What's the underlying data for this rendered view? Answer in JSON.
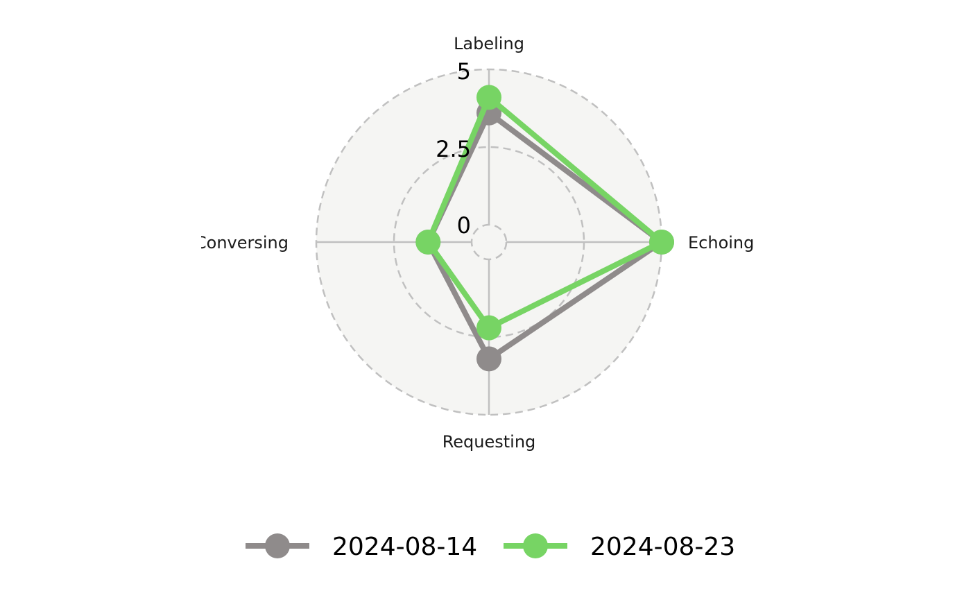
{
  "chart_data": {
    "type": "radar",
    "axes": [
      "Labeling",
      "Echoing",
      "Requesting",
      "Conversing"
    ],
    "radial_ticks": [
      "0",
      "2.5",
      "5"
    ],
    "rlim": [
      0,
      5
    ],
    "series": [
      {
        "name": "2024-08-14",
        "values": [
          3.6,
          5.0,
          3.2,
          1.4
        ],
        "color": "#8f8b8b"
      },
      {
        "name": "2024-08-23",
        "values": [
          4.1,
          5.0,
          2.2,
          1.4
        ],
        "color": "#77d464"
      }
    ],
    "legend_position": "bottom",
    "grid": true,
    "colors": {
      "panel": "#f5f5f3",
      "grid": "#c0c0c0"
    }
  }
}
